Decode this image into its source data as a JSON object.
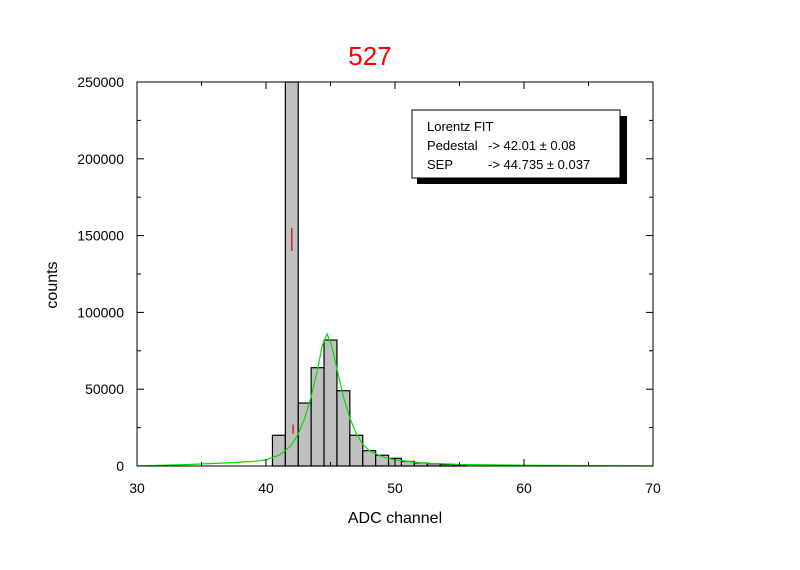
{
  "chart_data": {
    "type": "bar",
    "title": "527",
    "xlabel": "ADC channel",
    "ylabel": "counts",
    "xlim": [
      30,
      70
    ],
    "ylim": [
      0,
      250000
    ],
    "x_ticks": [
      30,
      40,
      50,
      60,
      70
    ],
    "x_tick_labels": [
      "30",
      "40",
      "50",
      "60",
      "70"
    ],
    "y_ticks": [
      0,
      50000,
      100000,
      150000,
      200000,
      250000
    ],
    "y_tick_labels": [
      "0",
      "50000",
      "100000",
      "150000",
      "200000",
      "250000"
    ],
    "grid": false,
    "bin_width": 1,
    "histogram": {
      "x": [
        41,
        42,
        43,
        44,
        45,
        46,
        47,
        48,
        49,
        50,
        51,
        52,
        53,
        54,
        55
      ],
      "values": [
        20000,
        250000,
        41000,
        64000,
        82000,
        49000,
        20000,
        10000,
        7000,
        5000,
        3000,
        2000,
        1500,
        1000,
        500
      ]
    },
    "fit_curve": {
      "name": "Lorentz FIT",
      "color": "#00e000",
      "peak_x": 44.735,
      "peak_y": 86000,
      "half_width": 1.2,
      "samples_x": [
        30,
        34,
        37,
        39,
        40,
        41,
        41.5,
        42,
        42.5,
        43,
        43.5,
        44,
        44.35,
        44.735,
        45.1,
        45.5,
        46,
        46.5,
        47,
        47.5,
        48,
        49,
        50,
        52,
        55,
        60,
        65,
        70
      ],
      "samples_y": [
        0,
        1000,
        2000,
        3000,
        4000,
        7000,
        10000,
        14000,
        21000,
        31000,
        45000,
        63000,
        78000,
        86000,
        78000,
        63000,
        45000,
        31000,
        21000,
        14000,
        10000,
        6000,
        4000,
        2000,
        1000,
        500,
        250,
        0
      ]
    },
    "pedestal_fit": {
      "color": "#cc0000",
      "segments": [
        {
          "x": 42.0,
          "y": [
            140000,
            155000
          ]
        },
        {
          "x": 42.1,
          "y": [
            21000,
            27000
          ]
        }
      ]
    },
    "legend": {
      "position": "top-right",
      "lines": [
        {
          "label": "Lorentz FIT",
          "value": ""
        },
        {
          "label": "Pedestal",
          "value": "-> 42.01 ± 0.08"
        },
        {
          "label": "SEP",
          "value": "-> 44.735 ± 0.037"
        }
      ]
    },
    "colors": {
      "bar_fill": "#c0c0c0",
      "bar_edge": "#000000",
      "title": "#ff0000",
      "fit": "#00e000",
      "pedestal_fit": "#cc0000"
    }
  }
}
